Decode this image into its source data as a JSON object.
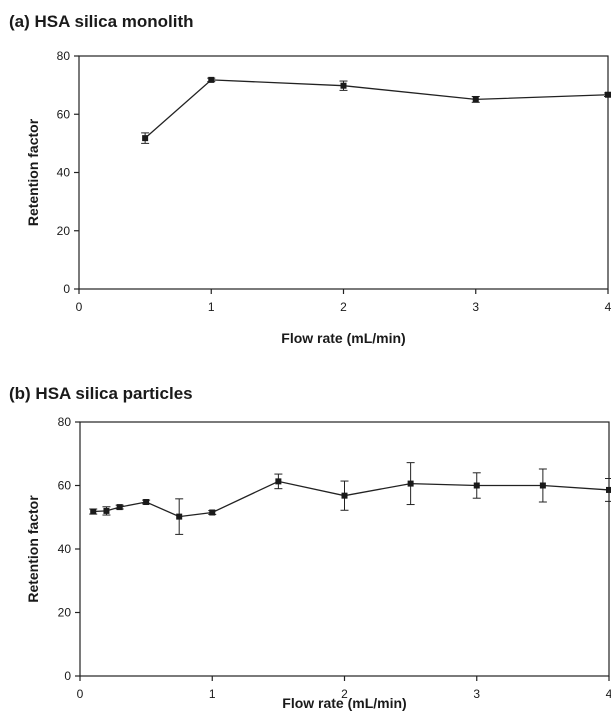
{
  "chart_data": [
    {
      "type": "line",
      "title": "(a) HSA silica monolith",
      "xlabel": "Flow rate (mL/min)",
      "ylabel": "Retention factor",
      "xlim": [
        0,
        4
      ],
      "ylim": [
        0,
        80
      ],
      "xticks": [
        "0",
        "1",
        "2",
        "3",
        "4"
      ],
      "yticks": [
        "0",
        "20",
        "40",
        "60",
        "80"
      ],
      "grid": false,
      "series": [
        {
          "x": [
            0.5,
            1,
            2,
            3,
            4
          ],
          "y": [
            51.8,
            71.8,
            69.8,
            65.1,
            66.7
          ],
          "error": [
            1.8,
            0.6,
            1.6,
            1.0,
            0.6
          ]
        }
      ]
    },
    {
      "type": "line",
      "title": "(b) HSA silica particles",
      "xlabel": "Flow rate (mL/min)",
      "ylabel": "Retention factor",
      "xlim": [
        0,
        4
      ],
      "ylim": [
        0,
        80
      ],
      "xticks": [
        "0",
        "1",
        "2",
        "3",
        "4"
      ],
      "yticks": [
        "0",
        "20",
        "40",
        "60",
        "80"
      ],
      "grid": false,
      "series": [
        {
          "x": [
            0.1,
            0.2,
            0.3,
            0.5,
            0.75,
            1,
            1.5,
            2,
            2.5,
            3,
            3.5,
            4
          ],
          "y": [
            51.8,
            52.0,
            53.2,
            54.8,
            50.2,
            51.5,
            61.3,
            56.8,
            60.6,
            60.0,
            60.0,
            58.6
          ],
          "error": [
            0.8,
            1.3,
            0.6,
            0.6,
            5.6,
            0.6,
            2.3,
            4.6,
            6.6,
            4.0,
            5.2,
            3.6
          ]
        }
      ]
    }
  ]
}
